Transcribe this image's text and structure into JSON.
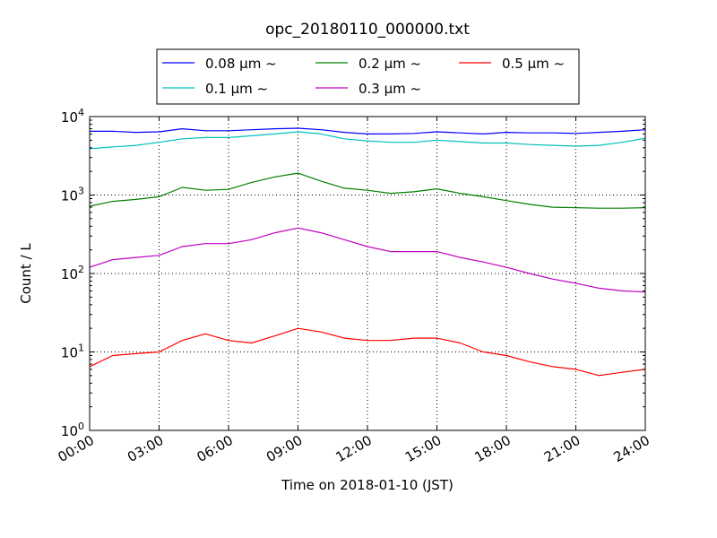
{
  "chart_data": {
    "type": "line",
    "title": "opc_20180110_000000.txt",
    "xlabel": "Time on 2018-01-10 (JST)",
    "ylabel": "Count / L",
    "yscale": "log",
    "ylim": [
      1,
      10000
    ],
    "xlim": [
      "00:00",
      "24:00"
    ],
    "x_tick_labels": [
      "00:00",
      "03:00",
      "06:00",
      "09:00",
      "12:00",
      "15:00",
      "18:00",
      "21:00",
      "24:00"
    ],
    "y_tick_labels": [
      {
        "base": "10",
        "exp": "0"
      },
      {
        "base": "10",
        "exp": "1"
      },
      {
        "base": "10",
        "exp": "2"
      },
      {
        "base": "10",
        "exp": "3"
      },
      {
        "base": "10",
        "exp": "4"
      }
    ],
    "grid": true,
    "legend_placement": "top-center",
    "x": [
      "00:00",
      "01:00",
      "02:00",
      "03:00",
      "04:00",
      "05:00",
      "06:00",
      "07:00",
      "08:00",
      "09:00",
      "10:00",
      "11:00",
      "12:00",
      "13:00",
      "14:00",
      "15:00",
      "16:00",
      "17:00",
      "18:00",
      "19:00",
      "20:00",
      "21:00",
      "22:00",
      "23:00",
      "24:00"
    ],
    "series": [
      {
        "name": "0.08 μm ~",
        "color": "#0000ff",
        "values": [
          6500,
          6500,
          6300,
          6400,
          7000,
          6600,
          6600,
          6800,
          7000,
          7100,
          6800,
          6300,
          6000,
          6000,
          6100,
          6400,
          6200,
          6000,
          6300,
          6200,
          6200,
          6100,
          6300,
          6500,
          6800
        ]
      },
      {
        "name": "0.1 μm ~",
        "color": "#00bfbf",
        "values": [
          3900,
          4100,
          4300,
          4700,
          5200,
          5400,
          5400,
          5700,
          6000,
          6400,
          6000,
          5200,
          4900,
          4700,
          4700,
          5000,
          4800,
          4600,
          4600,
          4400,
          4300,
          4200,
          4300,
          4700,
          5300
        ]
      },
      {
        "name": "0.2 μm ~",
        "color": "#008000",
        "values": [
          720,
          830,
          880,
          950,
          1250,
          1150,
          1180,
          1450,
          1700,
          1900,
          1500,
          1220,
          1150,
          1050,
          1100,
          1200,
          1050,
          950,
          850,
          760,
          700,
          690,
          680,
          680,
          690
        ]
      },
      {
        "name": "0.3 μm ~",
        "color": "#bf00bf",
        "values": [
          120,
          150,
          160,
          170,
          220,
          240,
          240,
          270,
          330,
          380,
          330,
          270,
          220,
          190,
          190,
          190,
          160,
          140,
          120,
          100,
          85,
          75,
          65,
          60,
          58
        ]
      },
      {
        "name": "0.5 μm ~",
        "color": "#ff0000",
        "values": [
          6.5,
          9,
          9.5,
          10,
          14,
          17,
          14,
          13,
          16,
          20,
          18,
          15,
          14,
          14,
          15,
          15,
          13,
          10,
          9,
          7.5,
          6.5,
          6,
          5,
          5.5,
          6
        ]
      }
    ]
  }
}
